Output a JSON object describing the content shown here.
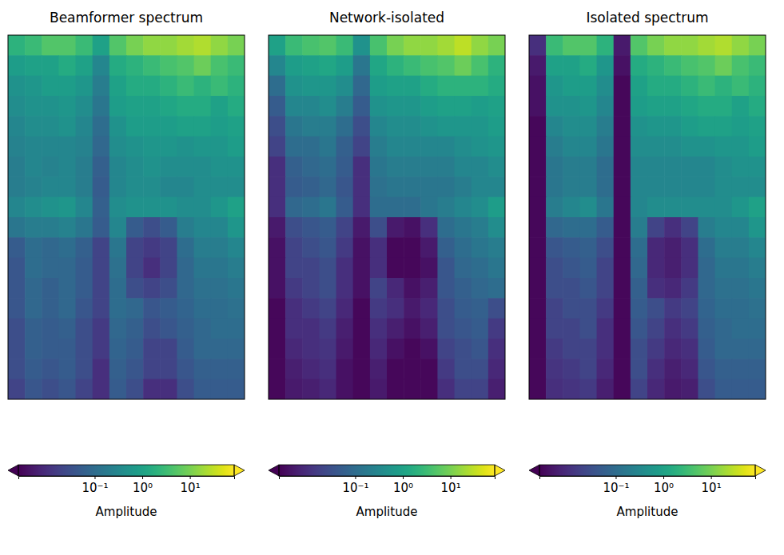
{
  "chart_data": [
    {
      "type": "heatmap",
      "title": "Beamformer spectrum",
      "log": true,
      "tick_labels": false,
      "cells": [
        [
          2,
          3,
          5,
          5,
          3,
          1,
          5,
          10,
          15,
          15,
          20,
          25,
          15,
          10
        ],
        [
          0.8,
          1,
          1,
          1.5,
          1,
          0.3,
          1.5,
          2,
          3,
          4,
          5,
          8,
          4,
          3
        ],
        [
          0.5,
          0.6,
          0.8,
          0.8,
          0.6,
          0.2,
          1,
          1.5,
          1.5,
          2,
          3,
          2,
          3,
          2
        ],
        [
          0.4,
          0.5,
          0.5,
          0.6,
          0.4,
          0.15,
          0.8,
          1,
          1,
          1.2,
          1.5,
          1.5,
          1,
          1.5
        ],
        [
          0.3,
          0.4,
          0.4,
          0.5,
          0.3,
          0.1,
          0.5,
          0.8,
          0.8,
          0.8,
          1,
          1,
          0.8,
          1
        ],
        [
          0.25,
          0.3,
          0.3,
          0.3,
          0.25,
          0.08,
          0.4,
          0.5,
          0.6,
          0.6,
          0.5,
          0.6,
          0.6,
          0.8
        ],
        [
          0.2,
          0.3,
          0.25,
          0.3,
          0.2,
          0.06,
          0.3,
          0.4,
          0.5,
          0.4,
          0.4,
          0.4,
          0.5,
          0.5
        ],
        [
          0.2,
          0.25,
          0.3,
          0.3,
          0.2,
          0.05,
          0.3,
          0.4,
          0.4,
          0.3,
          0.3,
          0.4,
          0.4,
          0.4
        ],
        [
          0.3,
          0.4,
          0.5,
          0.6,
          0.3,
          0.06,
          0.4,
          0.5,
          0.5,
          0.5,
          0.4,
          0.4,
          0.6,
          1
        ],
        [
          0.15,
          0.2,
          0.2,
          0.25,
          0.15,
          0.05,
          0.3,
          0.05,
          0.03,
          0.05,
          0.2,
          0.3,
          0.3,
          0.6
        ],
        [
          0.05,
          0.1,
          0.08,
          0.1,
          0.06,
          0.02,
          0.15,
          0.02,
          0.015,
          0.02,
          0.1,
          0.2,
          0.2,
          0.3
        ],
        [
          0.04,
          0.1,
          0.08,
          0.08,
          0.05,
          0.02,
          0.12,
          0.02,
          0.01,
          0.02,
          0.08,
          0.15,
          0.15,
          0.2
        ],
        [
          0.04,
          0.08,
          0.06,
          0.08,
          0.05,
          0.02,
          0.1,
          0.03,
          0.02,
          0.03,
          0.08,
          0.12,
          0.12,
          0.15
        ],
        [
          0.04,
          0.08,
          0.06,
          0.08,
          0.04,
          0.02,
          0.1,
          0.08,
          0.04,
          0.05,
          0.07,
          0.1,
          0.1,
          0.12
        ],
        [
          0.03,
          0.06,
          0.05,
          0.06,
          0.03,
          0.015,
          0.08,
          0.06,
          0.03,
          0.04,
          0.06,
          0.08,
          0.1,
          0.1
        ],
        [
          0.03,
          0.06,
          0.05,
          0.05,
          0.03,
          0.015,
          0.07,
          0.05,
          0.02,
          0.02,
          0.05,
          0.08,
          0.08,
          0.08
        ],
        [
          0.03,
          0.05,
          0.04,
          0.05,
          0.03,
          0.01,
          0.06,
          0.04,
          0.02,
          0.02,
          0.04,
          0.06,
          0.06,
          0.06
        ],
        [
          0.02,
          0.04,
          0.03,
          0.04,
          0.02,
          0.01,
          0.05,
          0.03,
          0.01,
          0.01,
          0.03,
          0.05,
          0.05,
          0.05
        ]
      ],
      "colorbar_range": [
        0.0025,
        85
      ],
      "colorbar_ticks": [
        {
          "value": 0.1,
          "label": "10⁻¹"
        },
        {
          "value": 1,
          "label": "10⁰"
        },
        {
          "value": 10,
          "label": "10¹"
        }
      ],
      "colorbar_label": "Amplitude"
    },
    {
      "type": "heatmap",
      "title": "Network-isolated",
      "log": true,
      "tick_labels": false,
      "cells": [
        [
          1,
          3,
          4,
          5,
          3,
          0.5,
          4,
          10,
          15,
          15,
          20,
          30,
          15,
          10
        ],
        [
          0.3,
          0.8,
          1,
          1.2,
          0.8,
          0.15,
          1.2,
          2,
          3,
          4,
          5,
          8,
          4,
          2
        ],
        [
          0.1,
          0.5,
          0.6,
          0.6,
          0.4,
          0.08,
          0.8,
          1,
          1,
          1.5,
          2,
          2,
          2,
          1.5
        ],
        [
          0.05,
          0.3,
          0.3,
          0.4,
          0.2,
          0.05,
          0.5,
          0.6,
          0.6,
          0.8,
          1,
          1,
          0.8,
          1
        ],
        [
          0.03,
          0.15,
          0.2,
          0.2,
          0.1,
          0.03,
          0.3,
          0.4,
          0.4,
          0.5,
          0.6,
          0.6,
          0.6,
          0.8
        ],
        [
          0.02,
          0.1,
          0.1,
          0.15,
          0.06,
          0.02,
          0.2,
          0.3,
          0.3,
          0.3,
          0.3,
          0.4,
          0.5,
          0.6
        ],
        [
          0.01,
          0.06,
          0.08,
          0.1,
          0.05,
          0.01,
          0.15,
          0.2,
          0.2,
          0.2,
          0.2,
          0.3,
          0.3,
          0.4
        ],
        [
          0.01,
          0.05,
          0.06,
          0.08,
          0.04,
          0.01,
          0.12,
          0.15,
          0.15,
          0.15,
          0.15,
          0.2,
          0.3,
          0.3
        ],
        [
          0.01,
          0.08,
          0.1,
          0.15,
          0.05,
          0.01,
          0.1,
          0.1,
          0.1,
          0.15,
          0.2,
          0.3,
          0.4,
          0.8
        ],
        [
          0.005,
          0.03,
          0.04,
          0.05,
          0.02,
          0.005,
          0.03,
          0.005,
          0.004,
          0.01,
          0.1,
          0.15,
          0.2,
          0.4
        ],
        [
          0.004,
          0.02,
          0.03,
          0.04,
          0.015,
          0.004,
          0.01,
          0.003,
          0.003,
          0.005,
          0.06,
          0.1,
          0.15,
          0.2
        ],
        [
          0.004,
          0.02,
          0.02,
          0.03,
          0.01,
          0.004,
          0.01,
          0.003,
          0.003,
          0.004,
          0.04,
          0.08,
          0.1,
          0.15
        ],
        [
          0.004,
          0.015,
          0.02,
          0.03,
          0.01,
          0.004,
          0.02,
          0.008,
          0.004,
          0.006,
          0.04,
          0.06,
          0.08,
          0.1
        ],
        [
          0.003,
          0.01,
          0.015,
          0.02,
          0.008,
          0.003,
          0.015,
          0.01,
          0.005,
          0.008,
          0.03,
          0.05,
          0.06,
          0.03
        ],
        [
          0.003,
          0.01,
          0.01,
          0.015,
          0.006,
          0.003,
          0.01,
          0.006,
          0.004,
          0.006,
          0.03,
          0.04,
          0.05,
          0.015
        ],
        [
          0.003,
          0.008,
          0.01,
          0.012,
          0.005,
          0.003,
          0.008,
          0.004,
          0.003,
          0.004,
          0.02,
          0.03,
          0.04,
          0.01
        ],
        [
          0.003,
          0.006,
          0.008,
          0.01,
          0.004,
          0.003,
          0.006,
          0.003,
          0.003,
          0.003,
          0.015,
          0.03,
          0.03,
          0.008
        ],
        [
          0.003,
          0.005,
          0.006,
          0.008,
          0.004,
          0.003,
          0.005,
          0.003,
          0.003,
          0.003,
          0.01,
          0.02,
          0.02,
          0.006
        ]
      ],
      "colorbar_range": [
        0.0025,
        85
      ],
      "colorbar_ticks": [
        {
          "value": 0.1,
          "label": "10⁻¹"
        },
        {
          "value": 1,
          "label": "10⁰"
        },
        {
          "value": 10,
          "label": "10¹"
        }
      ],
      "colorbar_label": "Amplitude"
    },
    {
      "type": "heatmap",
      "title": "Isolated spectrum",
      "log": true,
      "tick_labels": false,
      "cells": [
        [
          0.01,
          3,
          5,
          5,
          2,
          0.005,
          5,
          10,
          15,
          15,
          20,
          25,
          15,
          10
        ],
        [
          0.005,
          1,
          1,
          1.5,
          0.6,
          0.004,
          1.5,
          2,
          3,
          4,
          5,
          8,
          4,
          3
        ],
        [
          0.004,
          0.6,
          0.8,
          0.8,
          0.4,
          0.003,
          1,
          1.5,
          1.5,
          2,
          3,
          2,
          3,
          2
        ],
        [
          0.004,
          0.5,
          0.5,
          0.6,
          0.3,
          0.003,
          0.8,
          1,
          1,
          1.2,
          1.5,
          1.5,
          1,
          1.5
        ],
        [
          0.003,
          0.3,
          0.4,
          0.4,
          0.2,
          0.003,
          0.5,
          0.6,
          0.6,
          0.8,
          1,
          1,
          0.8,
          1
        ],
        [
          0.003,
          0.2,
          0.3,
          0.3,
          0.15,
          0.003,
          0.4,
          0.4,
          0.4,
          0.5,
          0.5,
          0.6,
          0.6,
          0.8
        ],
        [
          0.003,
          0.15,
          0.2,
          0.2,
          0.1,
          0.003,
          0.3,
          0.3,
          0.3,
          0.3,
          0.3,
          0.4,
          0.5,
          0.5
        ],
        [
          0.003,
          0.15,
          0.2,
          0.2,
          0.1,
          0.003,
          0.3,
          0.3,
          0.3,
          0.3,
          0.3,
          0.4,
          0.4,
          0.4
        ],
        [
          0.003,
          0.2,
          0.3,
          0.4,
          0.15,
          0.003,
          0.3,
          0.4,
          0.4,
          0.4,
          0.4,
          0.4,
          0.6,
          1
        ],
        [
          0.003,
          0.08,
          0.1,
          0.1,
          0.05,
          0.003,
          0.2,
          0.02,
          0.01,
          0.02,
          0.2,
          0.3,
          0.3,
          0.6
        ],
        [
          0.003,
          0.04,
          0.05,
          0.06,
          0.03,
          0.003,
          0.1,
          0.008,
          0.006,
          0.01,
          0.1,
          0.2,
          0.2,
          0.3
        ],
        [
          0.003,
          0.03,
          0.04,
          0.05,
          0.02,
          0.003,
          0.08,
          0.008,
          0.006,
          0.01,
          0.08,
          0.15,
          0.15,
          0.2
        ],
        [
          0.003,
          0.03,
          0.03,
          0.04,
          0.02,
          0.003,
          0.06,
          0.01,
          0.008,
          0.015,
          0.08,
          0.12,
          0.12,
          0.15
        ],
        [
          0.003,
          0.02,
          0.03,
          0.03,
          0.015,
          0.003,
          0.05,
          0.03,
          0.015,
          0.02,
          0.07,
          0.1,
          0.1,
          0.12
        ],
        [
          0.003,
          0.02,
          0.02,
          0.03,
          0.01,
          0.003,
          0.04,
          0.02,
          0.01,
          0.015,
          0.06,
          0.08,
          0.1,
          0.1
        ],
        [
          0.003,
          0.015,
          0.02,
          0.02,
          0.01,
          0.003,
          0.03,
          0.015,
          0.008,
          0.01,
          0.05,
          0.08,
          0.08,
          0.08
        ],
        [
          0.003,
          0.012,
          0.015,
          0.02,
          0.008,
          0.003,
          0.03,
          0.01,
          0.006,
          0.008,
          0.04,
          0.06,
          0.06,
          0.06
        ],
        [
          0.003,
          0.01,
          0.012,
          0.015,
          0.006,
          0.003,
          0.02,
          0.008,
          0.005,
          0.006,
          0.03,
          0.05,
          0.05,
          0.05
        ]
      ],
      "colorbar_range": [
        0.0025,
        85
      ],
      "colorbar_ticks": [
        {
          "value": 0.1,
          "label": "10⁻¹"
        },
        {
          "value": 1,
          "label": "10⁰"
        },
        {
          "value": 10,
          "label": "10¹"
        }
      ],
      "colorbar_label": "Amplitude"
    }
  ]
}
